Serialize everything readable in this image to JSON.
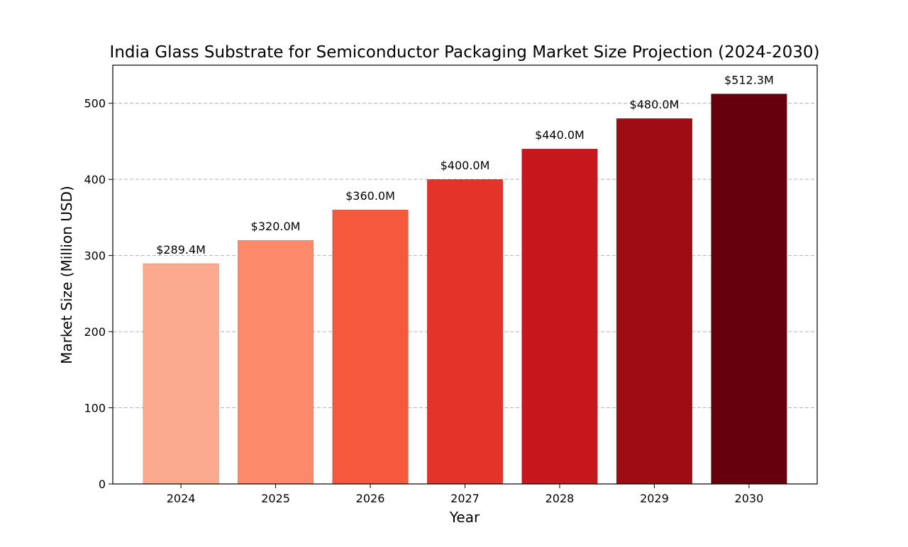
{
  "chart_data": {
    "type": "bar",
    "title": "India Glass Substrate for Semiconductor Packaging Market Size Projection (2024-2030)",
    "xlabel": "Year",
    "ylabel": "Market Size (Million USD)",
    "categories": [
      "2024",
      "2025",
      "2026",
      "2027",
      "2028",
      "2029",
      "2030"
    ],
    "values": [
      289.4,
      320.0,
      360.0,
      400.0,
      440.0,
      480.0,
      512.3
    ],
    "value_labels": [
      "$289.4M",
      "$320.0M",
      "$360.0M",
      "$400.0M",
      "$440.0M",
      "$480.0M",
      "$512.3M"
    ],
    "bar_colors": [
      "#fcaa8d",
      "#fc8a6a",
      "#f6583e",
      "#e43429",
      "#c5171c",
      "#9e0d14",
      "#67000d"
    ],
    "ylim": [
      0,
      550
    ],
    "yticks": [
      0,
      100,
      200,
      300,
      400,
      500
    ],
    "grid": true,
    "legend": false
  }
}
